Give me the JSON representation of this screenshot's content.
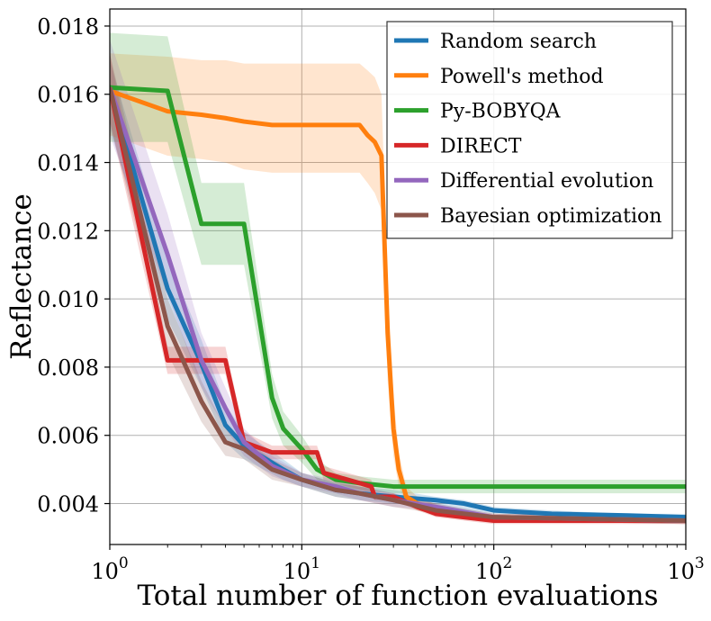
{
  "chart_data": {
    "type": "line",
    "xlabel": "Total number of function evaluations",
    "ylabel": "Reflectance",
    "xscale": "log",
    "xlim": [
      1,
      1000
    ],
    "ylim": [
      0.0028,
      0.0185
    ],
    "grid": true,
    "legend_placement": "top-right",
    "xticks": [
      {
        "value": 1,
        "base": "10",
        "exp": "0"
      },
      {
        "value": 10,
        "base": "10",
        "exp": "1"
      },
      {
        "value": 100,
        "base": "10",
        "exp": "2"
      },
      {
        "value": 1000,
        "base": "10",
        "exp": "3"
      }
    ],
    "yticks": [
      {
        "value": 0.004,
        "label": "0.004"
      },
      {
        "value": 0.006,
        "label": "0.006"
      },
      {
        "value": 0.008,
        "label": "0.008"
      },
      {
        "value": 0.01,
        "label": "0.010"
      },
      {
        "value": 0.012,
        "label": "0.012"
      },
      {
        "value": 0.014,
        "label": "0.014"
      },
      {
        "value": 0.016,
        "label": "0.016"
      },
      {
        "value": 0.018,
        "label": "0.018"
      }
    ],
    "series": [
      {
        "name": "Random search",
        "color": "#1f77b4",
        "x": [
          1,
          2,
          3,
          4,
          5,
          8,
          10,
          15,
          20,
          30,
          50,
          70,
          100,
          200,
          500,
          1000
        ],
        "y": [
          0.0162,
          0.0103,
          0.0081,
          0.0063,
          0.0057,
          0.005,
          0.0047,
          0.0044,
          0.0043,
          0.0042,
          0.0041,
          0.004,
          0.0038,
          0.0037,
          0.00365,
          0.0036
        ],
        "band_upper": [
          0.017,
          0.0112,
          0.0088,
          0.0069,
          0.0061,
          0.0053,
          0.0049,
          0.0046,
          0.0045,
          0.0044,
          0.0042,
          0.0041,
          0.0039,
          0.0038,
          0.0037,
          0.0037
        ],
        "band_lower": [
          0.015,
          0.0094,
          0.0074,
          0.0058,
          0.0053,
          0.0047,
          0.0045,
          0.0042,
          0.0041,
          0.004,
          0.0039,
          0.0038,
          0.0037,
          0.0036,
          0.0036,
          0.0035
        ]
      },
      {
        "name": "Powell's method",
        "color": "#ff7f0e",
        "x": [
          1,
          2,
          3,
          4,
          5,
          7,
          10,
          20,
          22,
          24,
          26,
          28,
          30,
          32,
          35,
          40,
          60,
          100,
          1000
        ],
        "y": [
          0.0161,
          0.0155,
          0.0154,
          0.0153,
          0.0152,
          0.0151,
          0.0151,
          0.0151,
          0.0148,
          0.0146,
          0.0142,
          0.009,
          0.0062,
          0.005,
          0.0042,
          0.004,
          0.0037,
          0.0036,
          0.0035
        ],
        "band_upper": [
          0.0172,
          0.0171,
          0.017,
          0.017,
          0.0169,
          0.0169,
          0.0169,
          0.0169,
          0.0167,
          0.0165,
          0.016,
          0.0105,
          0.0072,
          0.0055,
          0.0045,
          0.0042,
          0.0038,
          0.0037,
          0.0036
        ],
        "band_lower": [
          0.0148,
          0.0142,
          0.0141,
          0.014,
          0.0138,
          0.0137,
          0.0137,
          0.0137,
          0.0134,
          0.0131,
          0.0126,
          0.0076,
          0.0054,
          0.0045,
          0.004,
          0.0038,
          0.0036,
          0.0035,
          0.0034
        ]
      },
      {
        "name": "Py-BOBYQA",
        "color": "#2ca02c",
        "x": [
          1,
          2,
          3,
          4,
          5,
          7,
          8,
          10,
          12,
          15,
          20,
          30,
          40,
          100,
          1000
        ],
        "y": [
          0.0162,
          0.0161,
          0.0122,
          0.0122,
          0.0122,
          0.0071,
          0.0062,
          0.0056,
          0.005,
          0.0047,
          0.0046,
          0.0045,
          0.0045,
          0.0045,
          0.0045
        ],
        "band_upper": [
          0.0178,
          0.0177,
          0.0134,
          0.0134,
          0.0134,
          0.0078,
          0.0067,
          0.006,
          0.0053,
          0.0049,
          0.0048,
          0.0047,
          0.0047,
          0.0047,
          0.0047
        ],
        "band_lower": [
          0.0146,
          0.0146,
          0.011,
          0.011,
          0.011,
          0.0065,
          0.0057,
          0.0052,
          0.0047,
          0.0045,
          0.0044,
          0.0043,
          0.0043,
          0.0043,
          0.0043
        ]
      },
      {
        "name": "DIRECT",
        "color": "#d62728",
        "x": [
          1,
          2,
          2.5,
          3,
          4,
          5,
          7,
          10,
          12,
          13,
          15,
          20,
          23,
          24,
          30,
          40,
          50,
          70,
          100,
          1000
        ],
        "y": [
          0.0162,
          0.0082,
          0.0082,
          0.0082,
          0.0082,
          0.0058,
          0.0055,
          0.0055,
          0.0055,
          0.0049,
          0.0048,
          0.0046,
          0.0045,
          0.0042,
          0.0042,
          0.0039,
          0.0037,
          0.0036,
          0.0035,
          0.0035
        ],
        "band_upper": [
          0.0172,
          0.0086,
          0.0086,
          0.0086,
          0.0086,
          0.0061,
          0.0057,
          0.0057,
          0.0057,
          0.0051,
          0.005,
          0.0048,
          0.0047,
          0.0043,
          0.0043,
          0.004,
          0.0038,
          0.0037,
          0.0036,
          0.0036
        ],
        "band_lower": [
          0.0152,
          0.0078,
          0.0078,
          0.0078,
          0.0078,
          0.0055,
          0.0053,
          0.0053,
          0.0053,
          0.0047,
          0.0046,
          0.0044,
          0.0043,
          0.0041,
          0.0041,
          0.0038,
          0.0036,
          0.0035,
          0.0034,
          0.0034
        ]
      },
      {
        "name": "Differential evolution",
        "color": "#9467bd",
        "x": [
          1,
          2,
          3,
          4,
          5,
          7,
          10,
          15,
          20,
          30,
          50,
          100,
          1000
        ],
        "y": [
          0.0162,
          0.0113,
          0.0082,
          0.0068,
          0.0058,
          0.0051,
          0.0047,
          0.0045,
          0.0043,
          0.0041,
          0.0039,
          0.0036,
          0.0035
        ],
        "band_upper": [
          0.0176,
          0.0125,
          0.009,
          0.0074,
          0.0062,
          0.0054,
          0.0049,
          0.0047,
          0.0045,
          0.0043,
          0.004,
          0.0037,
          0.0036
        ],
        "band_lower": [
          0.0148,
          0.0101,
          0.0074,
          0.0062,
          0.0054,
          0.0048,
          0.0045,
          0.0043,
          0.0041,
          0.0039,
          0.0038,
          0.0035,
          0.0034
        ]
      },
      {
        "name": "Bayesian optimization",
        "color": "#8c564b",
        "x": [
          1,
          2,
          3,
          4,
          5,
          7,
          10,
          15,
          20,
          30,
          50,
          100,
          1000
        ],
        "y": [
          0.0162,
          0.0092,
          0.007,
          0.0058,
          0.0056,
          0.005,
          0.0047,
          0.0044,
          0.0043,
          0.0041,
          0.0038,
          0.0036,
          0.0035
        ],
        "band_upper": [
          0.0172,
          0.01,
          0.0076,
          0.0062,
          0.0059,
          0.0053,
          0.0049,
          0.0046,
          0.0045,
          0.0043,
          0.004,
          0.0037,
          0.0036
        ],
        "band_lower": [
          0.0152,
          0.0084,
          0.0064,
          0.0054,
          0.0053,
          0.0047,
          0.0045,
          0.0042,
          0.0041,
          0.0039,
          0.0037,
          0.0035,
          0.0034
        ]
      }
    ]
  }
}
